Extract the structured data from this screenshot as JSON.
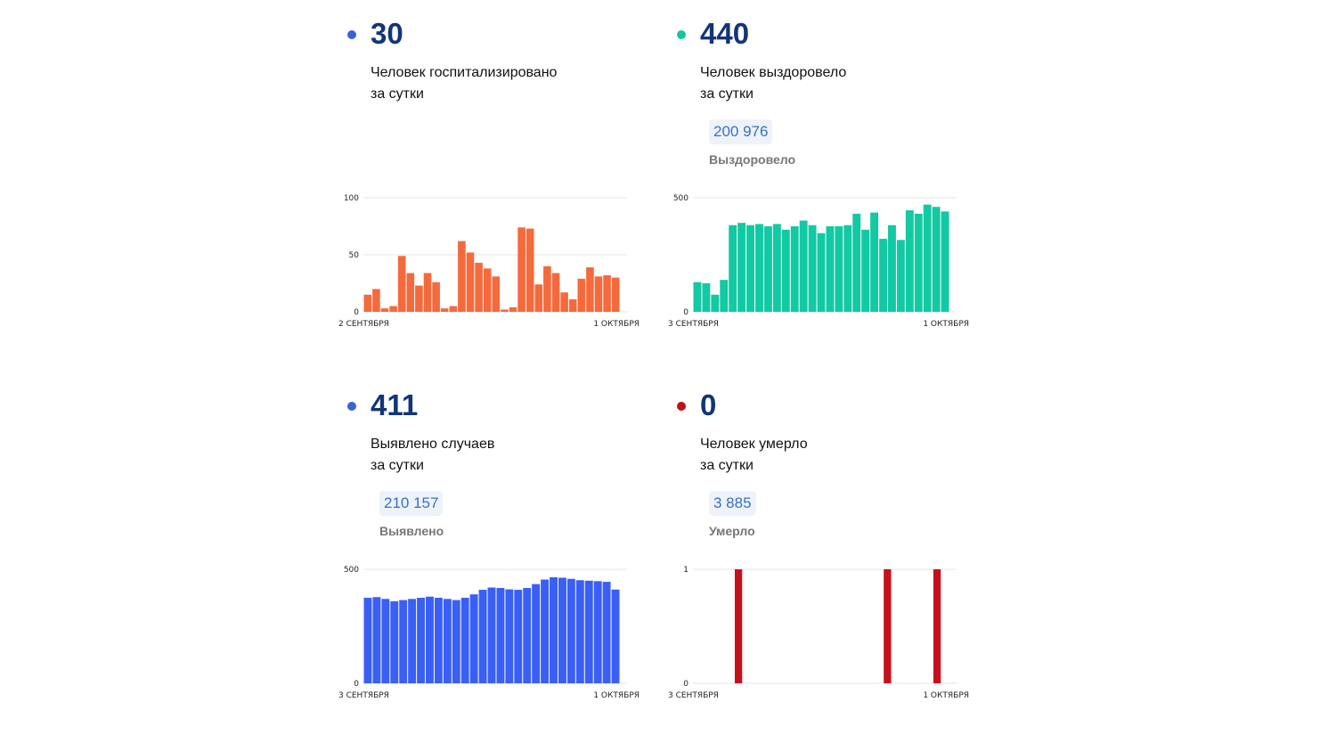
{
  "cards": [
    {
      "id": "hosp",
      "value": "30",
      "desc1": "Человек госпитализировано",
      "desc2": "за сутки",
      "total": "",
      "total_label": "",
      "dot_color": "#3a62d8",
      "bar_color": "#f46a3c"
    },
    {
      "id": "recovered",
      "value": "440",
      "desc1": "Человек выздоровело",
      "desc2": "за сутки",
      "total": "200 976",
      "total_label": "Выздоровело",
      "dot_color": "#13c6a0",
      "bar_color": "#12c9a3"
    },
    {
      "id": "cases",
      "value": "411",
      "desc1": "Выявлено случаев",
      "desc2": "за сутки",
      "total": "210 157",
      "total_label": "Выявлено",
      "dot_color": "#3a62d8",
      "bar_color": "#3a5ff5"
    },
    {
      "id": "deaths",
      "value": "0",
      "desc1": "Человек умерло",
      "desc2": "за сутки",
      "total": "3 885",
      "total_label": "Умерло",
      "dot_color": "#c0101a",
      "bar_color": "#c8101c"
    }
  ],
  "chart_data": [
    {
      "type": "bar",
      "title": "",
      "x_start_label": "2 СЕНТЯБРЯ",
      "x_end_label": "1 ОКТЯБРЯ",
      "yticks": [
        "0",
        "50",
        "100"
      ],
      "ylim": [
        0,
        100
      ],
      "values": [
        15,
        20,
        3,
        5,
        49,
        34,
        23,
        34,
        26,
        3,
        5,
        62,
        52,
        43,
        38,
        31,
        2,
        4,
        74,
        73,
        24,
        40,
        34,
        17,
        11,
        29,
        39,
        31,
        32,
        30
      ]
    },
    {
      "type": "bar",
      "title": "",
      "x_start_label": "3 СЕНТЯБРЯ",
      "x_end_label": "1 ОКТЯБРЯ",
      "yticks": [
        "0",
        "500"
      ],
      "ylim": [
        0,
        500
      ],
      "values": [
        130,
        125,
        75,
        140,
        380,
        390,
        380,
        385,
        375,
        385,
        360,
        375,
        400,
        380,
        345,
        375,
        375,
        380,
        430,
        360,
        435,
        320,
        380,
        315,
        445,
        430,
        470,
        460,
        440
      ]
    },
    {
      "type": "bar",
      "title": "",
      "x_start_label": "3 СЕНТЯБРЯ",
      "x_end_label": "1 ОКТЯБРЯ",
      "yticks": [
        "0",
        "500"
      ],
      "ylim": [
        0,
        500
      ],
      "values": [
        375,
        378,
        370,
        360,
        365,
        370,
        375,
        380,
        375,
        370,
        365,
        375,
        390,
        410,
        420,
        418,
        412,
        410,
        418,
        435,
        455,
        465,
        463,
        458,
        452,
        450,
        448,
        445,
        411
      ]
    },
    {
      "type": "bar",
      "title": "",
      "x_start_label": "3 СЕНТЯБРЯ",
      "x_end_label": "1 ОКТЯБРЯ",
      "yticks": [
        "0",
        "1"
      ],
      "ylim": [
        0,
        1
      ],
      "values": [
        0,
        0,
        0,
        0,
        0,
        1,
        0,
        0,
        0,
        0,
        0,
        0,
        0,
        0,
        0,
        0,
        0,
        0,
        0,
        0,
        0,
        0,
        0,
        1,
        0,
        0,
        0,
        0,
        0,
        1,
        0
      ]
    }
  ]
}
